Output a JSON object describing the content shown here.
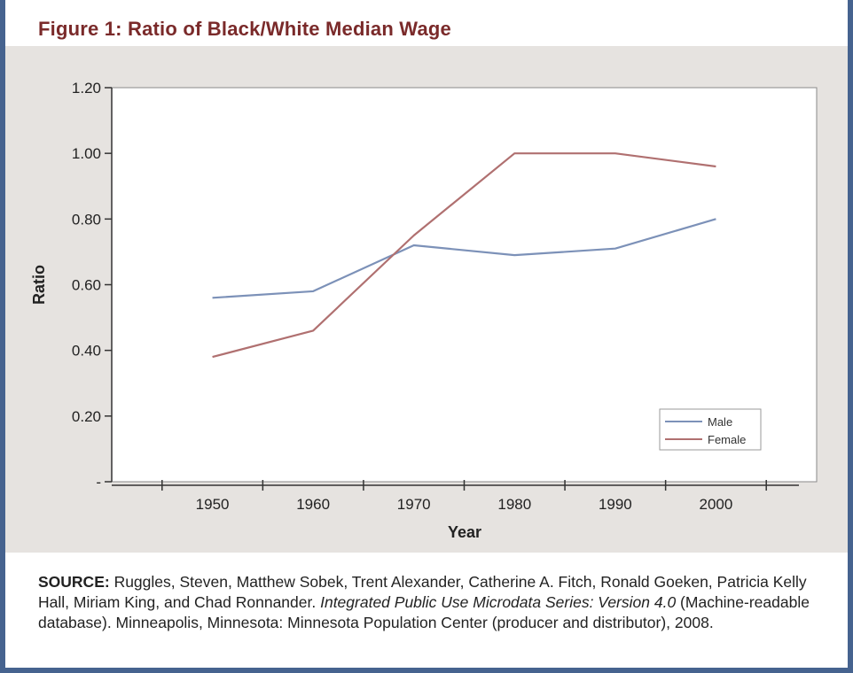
{
  "figure": {
    "title": "Figure 1: Ratio of Black/White Median Wage"
  },
  "chart_data": {
    "type": "line",
    "x": [
      1950,
      1960,
      1970,
      1980,
      1990,
      2000
    ],
    "x_tick_labels": [
      "1950",
      "1960",
      "1970",
      "1980",
      "1990",
      "2000"
    ],
    "series": [
      {
        "name": "Male",
        "values": [
          0.56,
          0.58,
          0.72,
          0.69,
          0.71,
          0.8
        ]
      },
      {
        "name": "Female",
        "values": [
          0.38,
          0.46,
          0.75,
          1.0,
          1.0,
          0.96
        ]
      }
    ],
    "xlabel": "Year",
    "ylabel": "Ratio",
    "ylim": [
      0,
      1.2
    ],
    "y_ticks": [
      0,
      0.2,
      0.4,
      0.6,
      0.8,
      1.0,
      1.2
    ],
    "y_tick_labels": [
      "-",
      "0.20",
      "0.40",
      "0.60",
      "0.80",
      "1.00",
      "1.20"
    ],
    "legend_position": "bottom-right",
    "grid": false,
    "colors": {
      "Male": "#7c91b8",
      "Female": "#b07070"
    }
  },
  "source": {
    "label": "SOURCE:",
    "text_before": " Ruggles, Steven, Matthew Sobek, Trent Alexander, Catherine A. Fitch, Ronald Goeken, Patricia Kelly Hall, Miriam King, and Chad Ronnander. ",
    "title_italic": "Integrated Public Use Microdata Series: Version 4.0",
    "text_after": " (Machine-readable database). Minneapolis, Minnesota: Minnesota Population Center (producer and distributor), 2008."
  }
}
